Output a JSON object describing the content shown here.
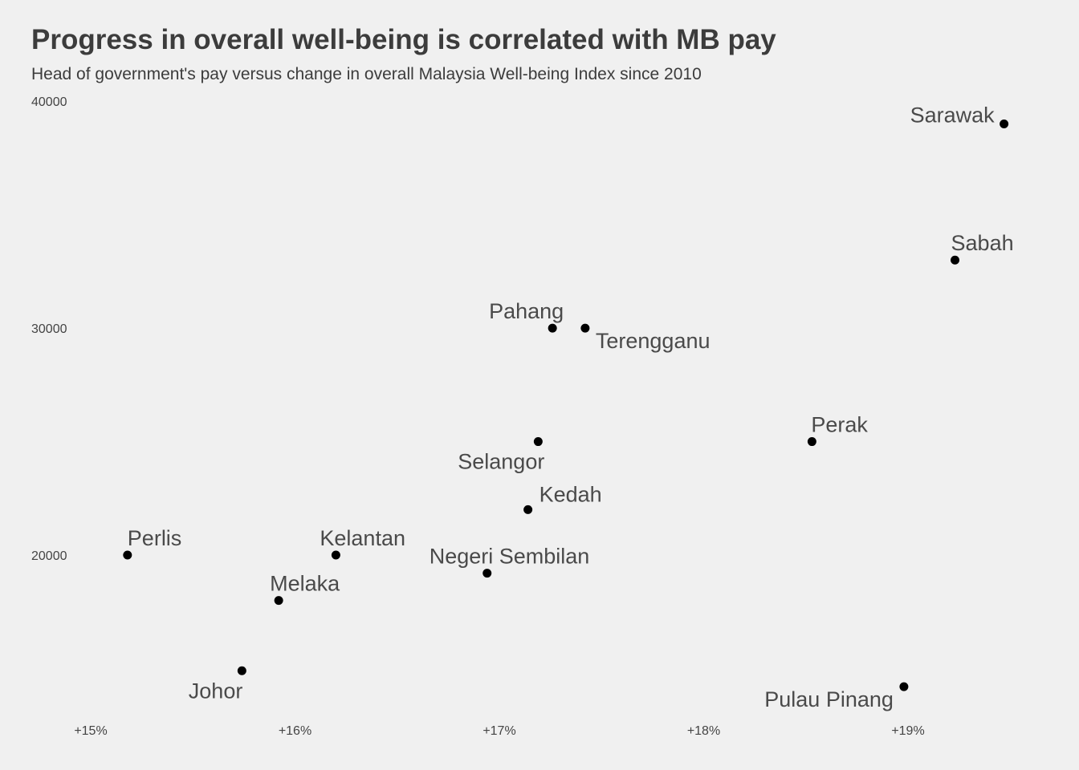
{
  "chart_data": {
    "type": "scatter",
    "title": "Progress in overall well-being is correlated with MB pay",
    "subtitle": "Head of government's pay versus change in overall Malaysia Well-being Index since 2010",
    "xlabel": "",
    "ylabel": "",
    "xlim": [
      14.8,
      19.45
    ],
    "ylim": [
      12000,
      40000
    ],
    "grid": false,
    "legend": "none",
    "x_ticks": [
      {
        "value": 15,
        "label": "+15%"
      },
      {
        "value": 16,
        "label": "+16%"
      },
      {
        "value": 17,
        "label": "+17%"
      },
      {
        "value": 18,
        "label": "+18%"
      },
      {
        "value": 19,
        "label": "+19%"
      }
    ],
    "y_ticks": [
      {
        "value": 40000,
        "label": "40000"
      },
      {
        "value": 30000,
        "label": "30000"
      },
      {
        "value": 20000,
        "label": "20000"
      }
    ],
    "point_color": "#000000",
    "points": [
      {
        "label": "Sarawak",
        "x": 19.47,
        "y": 39000,
        "anchor": "end",
        "dx": -12,
        "dy": -2
      },
      {
        "label": "Sabah",
        "x": 19.23,
        "y": 33000,
        "anchor": "start",
        "dx": -5,
        "dy": -12
      },
      {
        "label": "Pahang",
        "x": 17.26,
        "y": 30000,
        "anchor": "end",
        "dx": 14,
        "dy": -12
      },
      {
        "label": "Terengganu",
        "x": 17.42,
        "y": 30000,
        "anchor": "start",
        "dx": 13,
        "dy": 25
      },
      {
        "label": "Perak",
        "x": 18.53,
        "y": 25000,
        "anchor": "start",
        "dx": -1,
        "dy": -12
      },
      {
        "label": "Selangor",
        "x": 17.19,
        "y": 25000,
        "anchor": "end",
        "dx": 8,
        "dy": 34
      },
      {
        "label": "Kedah",
        "x": 17.14,
        "y": 22000,
        "anchor": "start",
        "dx": 14,
        "dy": -10
      },
      {
        "label": "Negeri Sembilan",
        "x": 16.94,
        "y": 19200,
        "anchor": "start",
        "dx": -72,
        "dy": -12
      },
      {
        "label": "Perlis",
        "x": 15.18,
        "y": 20000,
        "anchor": "start",
        "dx": 0,
        "dy": -12
      },
      {
        "label": "Kelantan",
        "x": 16.2,
        "y": 20000,
        "anchor": "start",
        "dx": -20,
        "dy": -12
      },
      {
        "label": "Melaka",
        "x": 15.92,
        "y": 18000,
        "anchor": "start",
        "dx": -11,
        "dy": -12
      },
      {
        "label": "Johor",
        "x": 15.74,
        "y": 14900,
        "anchor": "end",
        "dx": 1,
        "dy": 34
      },
      {
        "label": "Pulau Pinang",
        "x": 18.98,
        "y": 14200,
        "anchor": "end",
        "dx": -13,
        "dy": 25
      }
    ]
  }
}
